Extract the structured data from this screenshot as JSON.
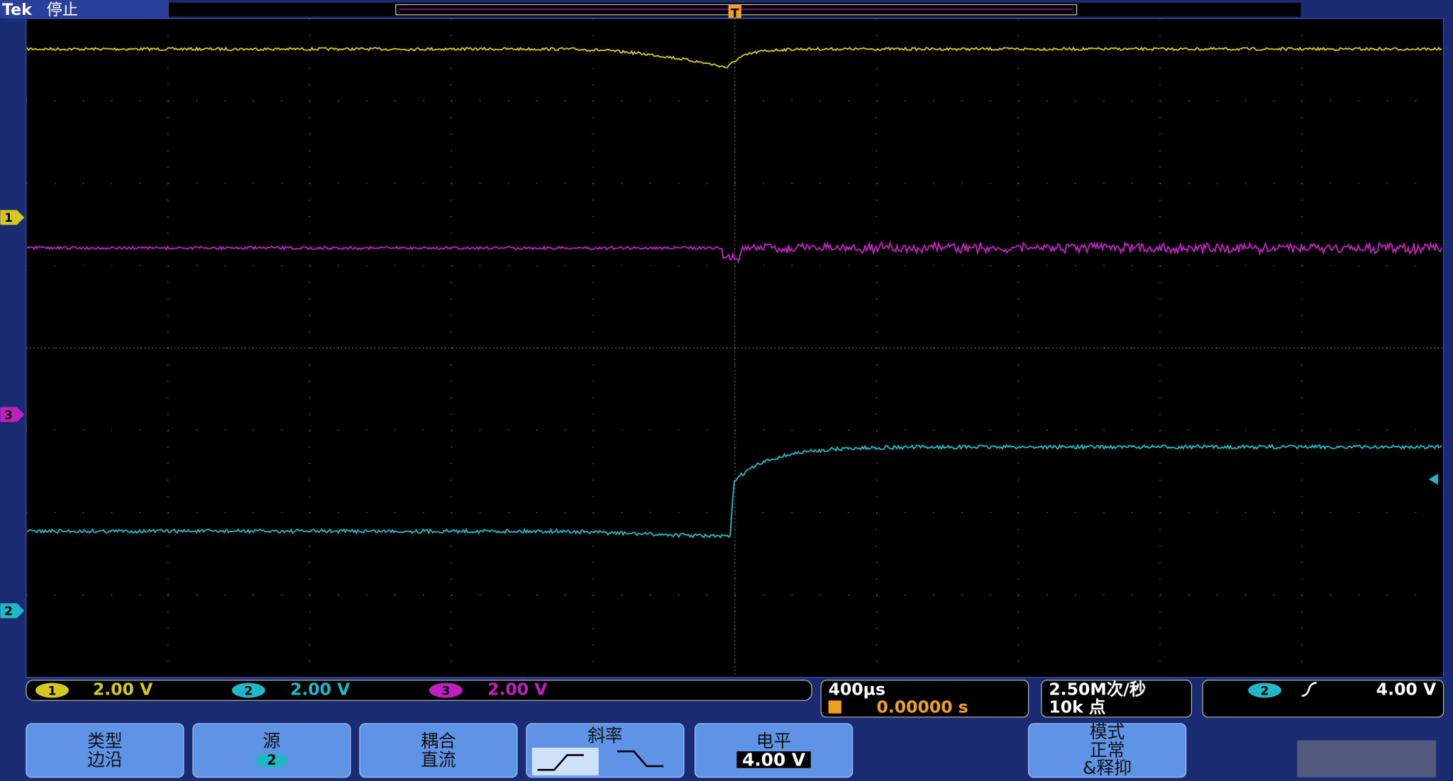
{
  "header": {
    "brand": "Tek",
    "status": "停止"
  },
  "markers": {
    "trigger": "T",
    "ch1": "1",
    "ch3": "3",
    "ch2": "2"
  },
  "channels": [
    {
      "number": "1",
      "scale": "2.00 V"
    },
    {
      "number": "2",
      "scale": "2.00 V"
    },
    {
      "number": "3",
      "scale": "2.00 V"
    }
  ],
  "timebase": {
    "scale": "400µs",
    "position": "0.00000 s"
  },
  "acquisition": {
    "rate": "2.50M次/秒",
    "length": "10k 点"
  },
  "trigger": {
    "source": "2",
    "level": "4.00 V"
  },
  "menu": [
    {
      "label": "类型",
      "value": "边沿"
    },
    {
      "label": "源",
      "value": "2"
    },
    {
      "label": "耦合",
      "value": "直流"
    },
    {
      "label": "斜率"
    },
    {
      "label": "电平",
      "value": "4.00 V"
    },
    {
      "label": "模式",
      "value": "正常",
      "extra": "&释抑"
    }
  ]
}
